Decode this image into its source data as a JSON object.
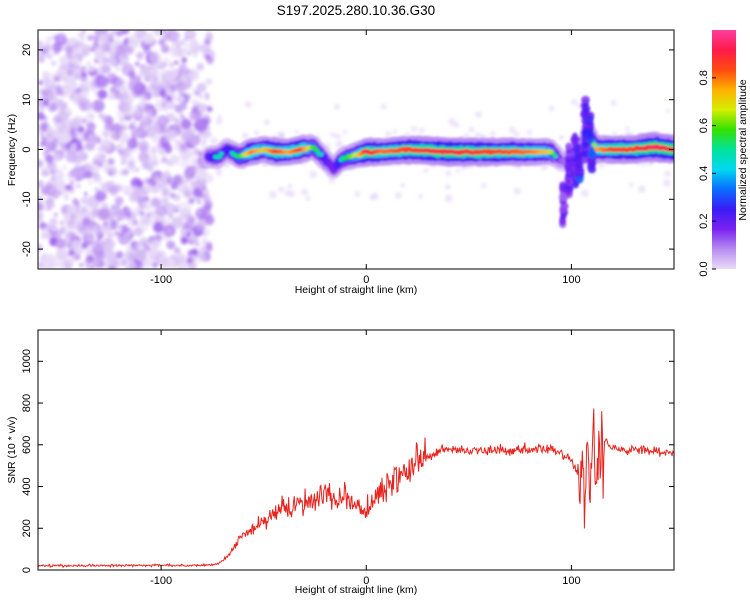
{
  "title": "S197.2025.280.10.36.G30",
  "chart_data": [
    {
      "type": "heatmap",
      "name": "spectrogram",
      "xlabel": "Height of straight line (km)",
      "ylabel": "Frequency (Hz)",
      "xlim": [
        -160,
        150
      ],
      "ylim": [
        -24,
        24
      ],
      "xticks": [
        -100,
        0,
        100
      ],
      "yticks": [
        -20,
        -10,
        0,
        10,
        20
      ],
      "colorbar": {
        "label": "Normalized spectral amplitude",
        "range": [
          0,
          1
        ],
        "ticks": [
          0.0,
          0.2,
          0.4,
          0.6,
          0.8
        ],
        "colors": [
          "#e9dcf7",
          "#b78cf0",
          "#7a22f2",
          "#3a1cf6",
          "#0a6cff",
          "#00d8f0",
          "#00e39a",
          "#35e000",
          "#d6ee00",
          "#ffb000",
          "#ff4a10",
          "#ff1a4a",
          "#ff3fa0"
        ]
      },
      "noise_region_x": [
        -160,
        -76
      ],
      "ridge_x": [
        -77,
        -72,
        -68,
        -62,
        -56,
        -50,
        -44,
        -38,
        -32,
        -26,
        -20,
        -16,
        -12,
        -8,
        -4,
        0,
        8,
        20,
        40,
        60,
        80,
        90,
        93,
        96,
        98,
        100,
        102,
        104,
        106,
        108,
        110,
        112,
        120,
        130,
        140,
        150
      ],
      "ridge_freq": [
        -1.5,
        -1.5,
        0,
        -1.5,
        -0.5,
        0,
        -0.5,
        -0.5,
        0,
        0.5,
        -2,
        -4,
        -2,
        -1.5,
        -1,
        -0.5,
        -0.5,
        0,
        -0.5,
        -0.5,
        -0.5,
        -0.5,
        -1.5,
        -2.5,
        -2,
        -1.5,
        -3,
        -1.5,
        1,
        4,
        2,
        0,
        0,
        0,
        0.5,
        0
      ],
      "ridge_amp": [
        0.35,
        0.5,
        0.4,
        0.55,
        0.8,
        0.7,
        0.85,
        0.75,
        0.85,
        0.6,
        0.4,
        0.3,
        0.5,
        0.6,
        0.7,
        0.9,
        0.8,
        0.85,
        0.9,
        0.85,
        0.8,
        0.7,
        0.4,
        0.2,
        0.2,
        0.2,
        0.15,
        0.2,
        0.3,
        0.35,
        0.5,
        0.75,
        0.85,
        0.85,
        0.95,
        0.9
      ]
    },
    {
      "type": "line",
      "name": "snr",
      "xlabel": "Height of straight line (km)",
      "ylabel": "SNR (10 * v/v)",
      "xlim": [
        -160,
        150
      ],
      "ylim": [
        0,
        1150
      ],
      "xticks": [
        -100,
        0,
        100
      ],
      "yticks": [
        0,
        200,
        400,
        600,
        800,
        1000
      ],
      "color": "#e8231e",
      "x": [
        -160,
        -120,
        -80,
        -72,
        -68,
        -64,
        -60,
        -56,
        -50,
        -45,
        -40,
        -35,
        -30,
        -25,
        -20,
        -15,
        -10,
        -5,
        0,
        5,
        10,
        15,
        20,
        25,
        30,
        35,
        40,
        50,
        60,
        70,
        80,
        90,
        95,
        100,
        103,
        105,
        107,
        108,
        109,
        110,
        112,
        114,
        116,
        120,
        130,
        140,
        150
      ],
      "snr": [
        20,
        22,
        22,
        30,
        60,
        120,
        160,
        190,
        240,
        260,
        290,
        310,
        330,
        350,
        370,
        340,
        350,
        300,
        290,
        340,
        400,
        440,
        480,
        520,
        540,
        560,
        580,
        570,
        575,
        570,
        575,
        580,
        560,
        530,
        460,
        400,
        380,
        800,
        260,
        750,
        380,
        480,
        620,
        580,
        575,
        570,
        560
      ]
    }
  ]
}
